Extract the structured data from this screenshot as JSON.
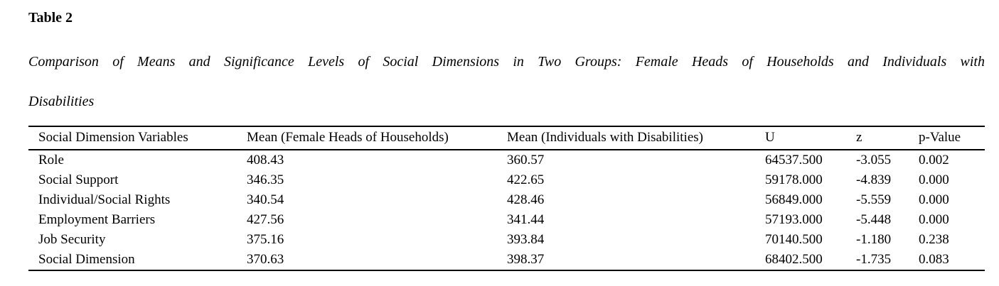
{
  "page": {
    "label": "Table 2",
    "caption_line1": "Comparison of Means and Significance Levels of Social Dimensions in Two Groups: Female Heads of Households and Individuals with",
    "caption_line2": "Disabilities"
  },
  "table": {
    "columns": [
      "Social Dimension Variables",
      "Mean (Female Heads of Households)",
      "Mean (Individuals with Disabilities)",
      "U",
      "z",
      "p-Value"
    ],
    "rows": [
      [
        "Role",
        "408.43",
        "360.57",
        "64537.500",
        "-3.055",
        "0.002"
      ],
      [
        "Social Support",
        "346.35",
        "422.65",
        "59178.000",
        "-4.839",
        "0.000"
      ],
      [
        "Individual/Social Rights",
        "340.54",
        "428.46",
        "56849.000",
        "-5.559",
        "0.000"
      ],
      [
        "Employment Barriers",
        "427.56",
        "341.44",
        "57193.000",
        "-5.448",
        "0.000"
      ],
      [
        "Job Security",
        "375.16",
        "393.84",
        "70140.500",
        "-1.180",
        "0.238"
      ],
      [
        "Social Dimension",
        "370.63",
        "398.37",
        "68402.500",
        "-1.735",
        "0.083"
      ]
    ]
  },
  "colors": {
    "text": "#000000",
    "background": "#ffffff",
    "rule": "#000000"
  }
}
